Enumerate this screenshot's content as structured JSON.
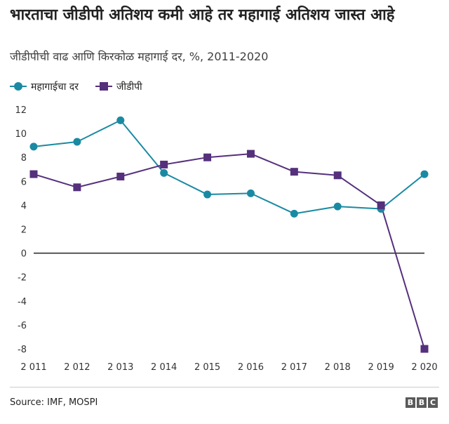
{
  "header": {
    "title": "भारताचा जीडीपी अतिशय कमी आहे तर महागाई अतिशय जास्त आहे",
    "subtitle": "जीडीपीची वाढ आणि किरकोळ महागाई दर, %, 2011-2020"
  },
  "footer": {
    "source": "Source: IMF, MOSPI",
    "logo_letters": [
      "B",
      "B",
      "C"
    ]
  },
  "colors": {
    "inflation": "#1a8aa3",
    "gdp": "#55307c",
    "grid": "#dddddd",
    "zero_line": "#222222"
  },
  "chart_data": {
    "type": "line",
    "title": "भारताचा जीडीपी अतिशय कमी आहे तर महागाई अतिशय जास्त आहे",
    "subtitle": "जीडीपीची वाढ आणि किरकोळ महागाई दर, %, 2011-2020",
    "x": [
      "2011",
      "2012",
      "2013",
      "2014",
      "2015",
      "2016",
      "2017",
      "2018",
      "2019",
      "2020"
    ],
    "x_tick_labels": [
      "2 011",
      "2 012",
      "2 013",
      "2 014",
      "2 015",
      "2 016",
      "2 017",
      "2 018",
      "2 019",
      "2 020"
    ],
    "series": [
      {
        "name": "महागाईचा दर",
        "marker": "circle",
        "color": "#1a8aa3",
        "values": [
          8.9,
          9.3,
          11.1,
          6.7,
          4.9,
          5.0,
          3.3,
          3.9,
          3.7,
          6.6
        ]
      },
      {
        "name": "जीडीपी",
        "marker": "square",
        "color": "#55307c",
        "values": [
          6.6,
          5.5,
          6.4,
          7.4,
          8.0,
          8.3,
          6.8,
          6.5,
          4.0,
          -8.0
        ]
      }
    ],
    "ylim": [
      -8,
      12
    ],
    "yticks": [
      12,
      10,
      8,
      6,
      4,
      2,
      0,
      -2,
      -4,
      -6,
      -8
    ],
    "xlabel": "",
    "ylabel": "",
    "grid": false,
    "legend_position": "top-left"
  }
}
